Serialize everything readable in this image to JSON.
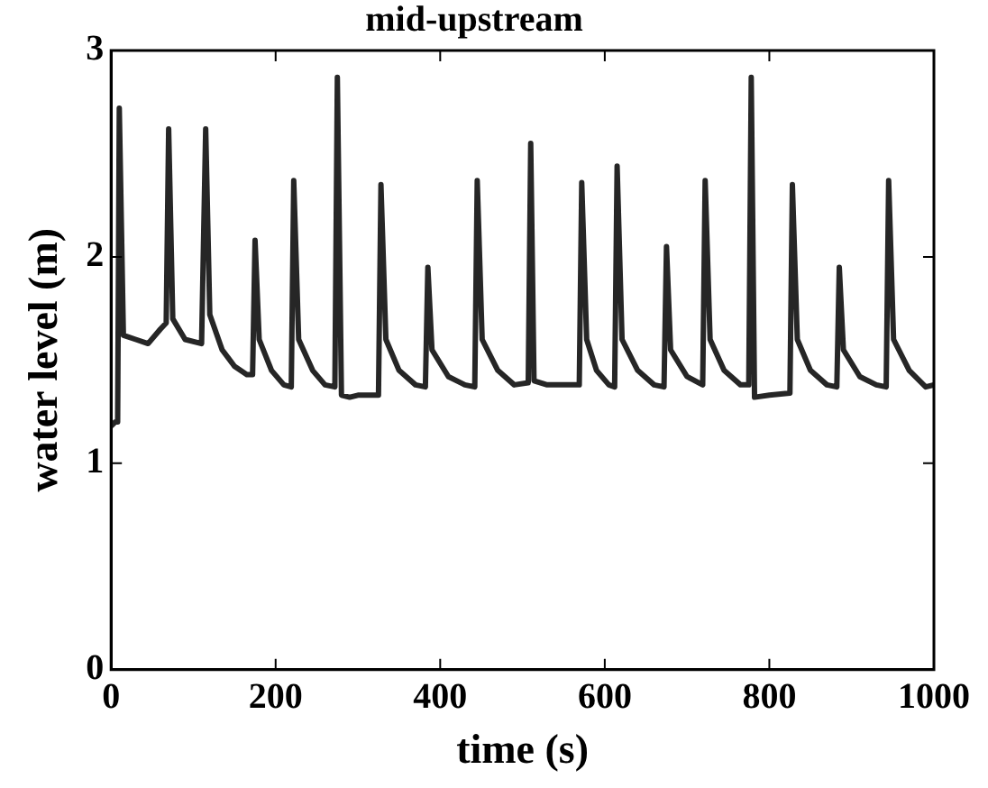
{
  "chart_data": {
    "type": "line",
    "title": "mid-upstream",
    "xlabel": "time (s)",
    "ylabel": "water level (m)",
    "xlim": [
      0,
      1000
    ],
    "xticks": [
      0,
      200,
      400,
      600,
      800,
      1000
    ],
    "ylim": [
      0,
      3
    ],
    "yticks": [
      0,
      1,
      2,
      3
    ],
    "grid": false,
    "legend": false,
    "marker": "none",
    "line_style": "solid",
    "series": [
      {
        "color": "#262626",
        "x": [
          0,
          5,
          8,
          10,
          15,
          30,
          45,
          60,
          67,
          70,
          75,
          90,
          110,
          115,
          120,
          135,
          150,
          165,
          172,
          175,
          180,
          195,
          210,
          219,
          222,
          228,
          245,
          260,
          272,
          275,
          280,
          290,
          300,
          325,
          328,
          334,
          350,
          370,
          382,
          385,
          390,
          410,
          430,
          442,
          445,
          451,
          470,
          490,
          507,
          510,
          514,
          530,
          555,
          569,
          572,
          578,
          590,
          605,
          612,
          615,
          621,
          640,
          660,
          672,
          675,
          680,
          700,
          719,
          722,
          728,
          745,
          765,
          775,
          778,
          782,
          800,
          825,
          828,
          834,
          850,
          870,
          882,
          885,
          890,
          910,
          930,
          942,
          945,
          951,
          970,
          990,
          1000
        ],
        "values": [
          1.18,
          1.2,
          1.2,
          2.72,
          1.62,
          1.6,
          1.58,
          1.65,
          1.68,
          2.62,
          1.7,
          1.6,
          1.58,
          2.62,
          1.72,
          1.55,
          1.47,
          1.43,
          1.43,
          2.08,
          1.6,
          1.45,
          1.38,
          1.37,
          2.37,
          1.6,
          1.45,
          1.38,
          1.37,
          2.87,
          1.33,
          1.32,
          1.33,
          1.33,
          2.35,
          1.6,
          1.45,
          1.38,
          1.37,
          1.95,
          1.55,
          1.42,
          1.38,
          1.37,
          2.37,
          1.6,
          1.45,
          1.38,
          1.39,
          2.55,
          1.4,
          1.38,
          1.38,
          1.38,
          2.36,
          1.6,
          1.45,
          1.38,
          1.37,
          2.44,
          1.6,
          1.45,
          1.38,
          1.37,
          2.05,
          1.55,
          1.42,
          1.38,
          2.37,
          1.6,
          1.45,
          1.38,
          1.38,
          2.87,
          1.32,
          1.33,
          1.34,
          2.35,
          1.6,
          1.45,
          1.38,
          1.37,
          1.95,
          1.55,
          1.42,
          1.38,
          1.37,
          2.37,
          1.6,
          1.45,
          1.37,
          1.38
        ]
      }
    ]
  }
}
